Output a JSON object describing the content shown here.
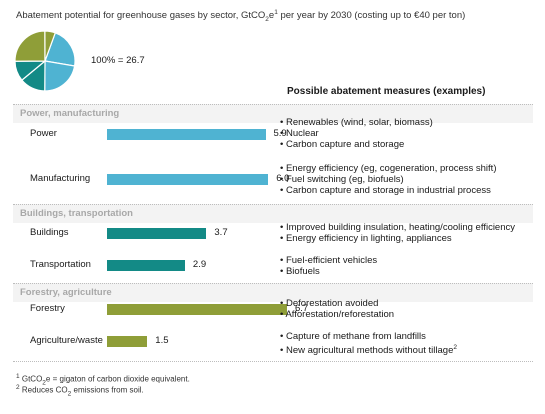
{
  "title": {
    "prefix": "Abatement potential for greenhouse gases by sector, GtCO",
    "sub": "2",
    "mid": "e",
    "sup": "1",
    "suffix": " per year by 2030 (costing up to €40 per ton)"
  },
  "total_label": "100% = 26.7",
  "measures_header": "Possible abatement measures (examples)",
  "colors": {
    "power_manufacturing": "#4fb3d2",
    "buildings_transportation": "#138a86",
    "forestry_agriculture": "#8f9e38"
  },
  "chart_data": {
    "type": "bar",
    "orientation": "horizontal",
    "unit": "GtCO2e per year",
    "total": 26.7,
    "sectors": [
      {
        "name": "Power, manufacturing",
        "color": "#4fb3d2",
        "categories": [
          "Power",
          "Manufacturing"
        ],
        "values": [
          5.9,
          6.0
        ]
      },
      {
        "name": "Buildings, transportation",
        "color": "#138a86",
        "categories": [
          "Buildings",
          "Transportation"
        ],
        "values": [
          3.7,
          2.9
        ]
      },
      {
        "name": "Forestry, agriculture",
        "color": "#8f9e38",
        "categories": [
          "Forestry",
          "Agriculture/waste"
        ],
        "values": [
          6.7,
          1.5
        ]
      }
    ],
    "pie": {
      "type": "pie",
      "slices": [
        {
          "value": 5.9,
          "color": "#4fb3d2"
        },
        {
          "value": 6.0,
          "color": "#4fb3d2"
        },
        {
          "value": 3.7,
          "color": "#138a86"
        },
        {
          "value": 2.9,
          "color": "#138a86"
        },
        {
          "value": 6.7,
          "color": "#8f9e38"
        },
        {
          "value": 1.5,
          "color": "#8f9e38"
        }
      ]
    }
  },
  "measures": {
    "power": [
      "• Renewables (wind, solar, biomass)",
      "• Nuclear",
      "• Carbon capture and storage"
    ],
    "manufacturing": [
      "• Energy efficiency (eg, cogeneration, process shift)",
      "• Fuel switching (eg, biofuels)",
      "• Carbon capture and storage in industrial process"
    ],
    "buildings": [
      "• Improved building insulation, heating/cooling efficiency",
      "• Energy efficiency in lighting, appliances"
    ],
    "transportation": [
      "• Fuel-efficient vehicles",
      "• Biofuels"
    ],
    "forestry": [
      "• Deforestation avoided",
      "• Afforestation/reforestation"
    ],
    "agriculture": [
      "• Capture of methane from landfills",
      "• New agricultural methods without tillage"
    ],
    "agriculture_sup": "2"
  },
  "footnotes": {
    "f1": {
      "sup": "1",
      "a": " GtCO",
      "sub": "2",
      "b": "e = gigaton of carbon dioxide equivalent."
    },
    "f2": {
      "sup": "2",
      "a": " Reduces CO",
      "sub": "2",
      "b": " emissions from soil."
    }
  }
}
